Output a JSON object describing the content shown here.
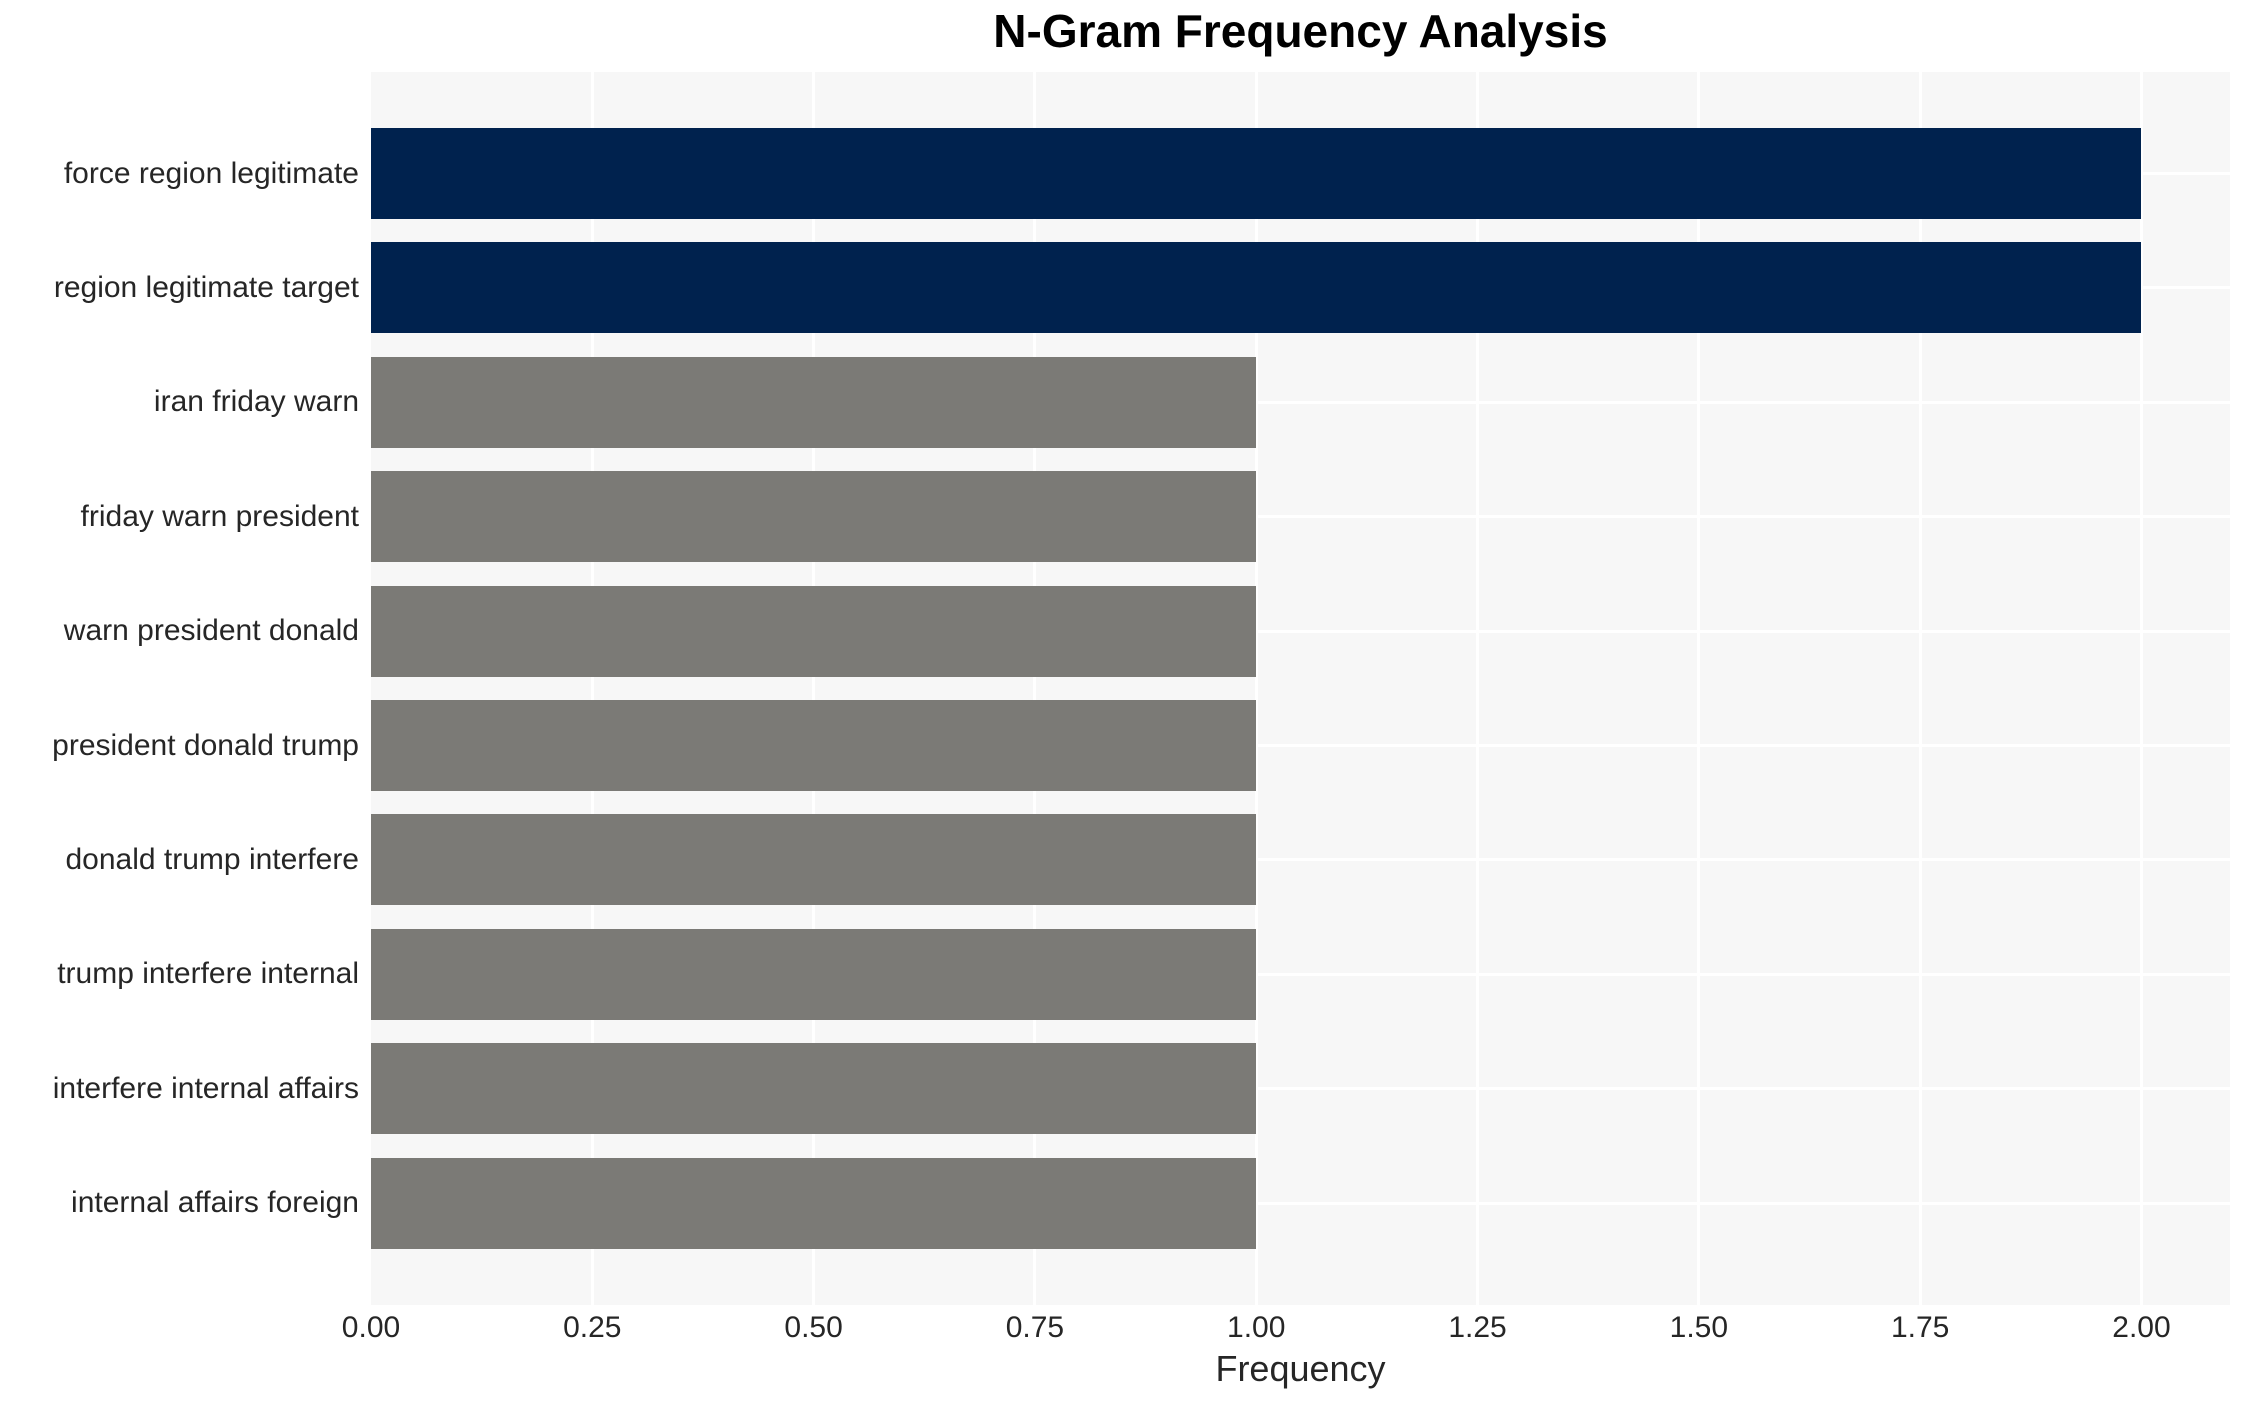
{
  "chart_data": {
    "type": "bar",
    "orientation": "horizontal",
    "title": "N-Gram Frequency Analysis",
    "xlabel": "Frequency",
    "ylabel": "",
    "categories": [
      "force region legitimate",
      "region legitimate target",
      "iran friday warn",
      "friday warn president",
      "warn president donald",
      "president donald trump",
      "donald trump interfere",
      "trump interfere internal",
      "interfere internal affairs",
      "internal affairs foreign"
    ],
    "values": [
      2,
      2,
      1,
      1,
      1,
      1,
      1,
      1,
      1,
      1
    ],
    "bar_colors": [
      "#00224e",
      "#00224e",
      "#7b7a76",
      "#7b7a76",
      "#7b7a76",
      "#7b7a76",
      "#7b7a76",
      "#7b7a76",
      "#7b7a76",
      "#7b7a76"
    ],
    "xlim": [
      0,
      2.1
    ],
    "xticks": [
      "0.00",
      "0.25",
      "0.50",
      "0.75",
      "1.00",
      "1.25",
      "1.50",
      "1.75",
      "2.00"
    ],
    "xtick_values": [
      0,
      0.25,
      0.5,
      0.75,
      1.0,
      1.25,
      1.5,
      1.75,
      2.0
    ],
    "grid": "on",
    "legend": "none",
    "colors": {
      "plot_background": "#f7f7f7",
      "gridline": "#ffffff",
      "high_value_bar": "#00224e",
      "low_value_bar": "#7b7a76",
      "tick_text": "#262626",
      "title_text": "#000000"
    }
  }
}
